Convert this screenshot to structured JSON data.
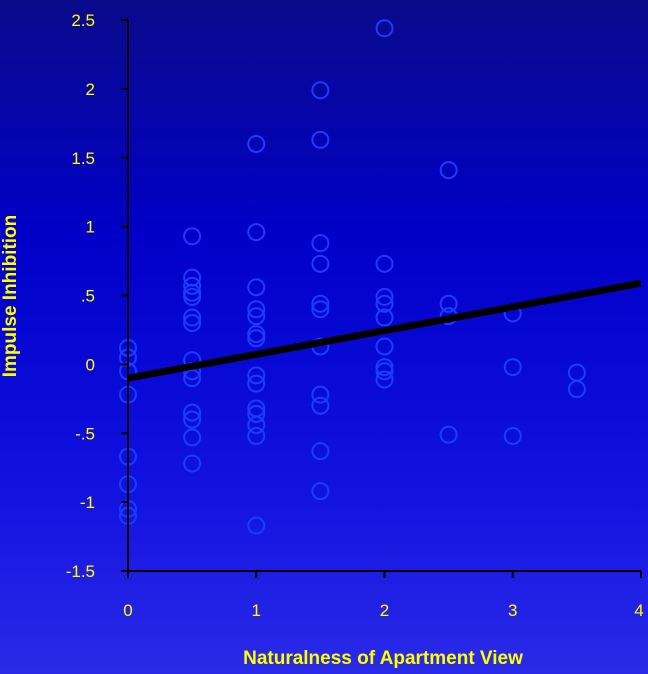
{
  "chart_data": {
    "type": "scatter",
    "xlabel": "Naturalness of Apartment View",
    "ylabel": "Impulse Inhibition",
    "xlim": [
      0,
      4
    ],
    "ylim": [
      -1.5,
      2.5
    ],
    "x_ticks": [
      {
        "value": 0,
        "label": "0"
      },
      {
        "value": 1,
        "label": "1"
      },
      {
        "value": 2,
        "label": "2"
      },
      {
        "value": 3,
        "label": "3"
      },
      {
        "value": 4,
        "label": "4"
      }
    ],
    "y_ticks": [
      {
        "value": 2.5,
        "label": "2.5"
      },
      {
        "value": 2,
        "label": "2"
      },
      {
        "value": 1.5,
        "label": "1.5"
      },
      {
        "value": 1,
        "label": "1"
      },
      {
        "value": 0.5,
        "label": ".5"
      },
      {
        "value": 0,
        "label": "0"
      },
      {
        "value": -0.5,
        "label": "-.5"
      },
      {
        "value": -1,
        "label": "-1"
      },
      {
        "value": -1.5,
        "label": "-1.5"
      }
    ],
    "points": [
      {
        "x": 0,
        "y": 0.12
      },
      {
        "x": 0,
        "y": 0.05
      },
      {
        "x": 0,
        "y": -0.05
      },
      {
        "x": 0,
        "y": -0.22
      },
      {
        "x": 0,
        "y": -0.67
      },
      {
        "x": 0,
        "y": -0.87
      },
      {
        "x": 0,
        "y": -1.05
      },
      {
        "x": 0,
        "y": -1.1
      },
      {
        "x": 0.5,
        "y": 0.93
      },
      {
        "x": 0.5,
        "y": 0.63
      },
      {
        "x": 0.5,
        "y": 0.57
      },
      {
        "x": 0.5,
        "y": 0.52
      },
      {
        "x": 0.5,
        "y": 0.49
      },
      {
        "x": 0.5,
        "y": 0.34
      },
      {
        "x": 0.5,
        "y": 0.3
      },
      {
        "x": 0.5,
        "y": 0.03
      },
      {
        "x": 0.5,
        "y": -0.05
      },
      {
        "x": 0.5,
        "y": -0.1
      },
      {
        "x": 0.5,
        "y": -0.35
      },
      {
        "x": 0.5,
        "y": -0.4
      },
      {
        "x": 0.5,
        "y": -0.53
      },
      {
        "x": 0.5,
        "y": -0.72
      },
      {
        "x": 1,
        "y": 1.6
      },
      {
        "x": 1,
        "y": 0.96
      },
      {
        "x": 1,
        "y": 0.56
      },
      {
        "x": 1,
        "y": 0.4
      },
      {
        "x": 1,
        "y": 0.35
      },
      {
        "x": 1,
        "y": 0.22
      },
      {
        "x": 1,
        "y": 0.19
      },
      {
        "x": 1,
        "y": -0.08
      },
      {
        "x": 1,
        "y": -0.14
      },
      {
        "x": 1,
        "y": -0.32
      },
      {
        "x": 1,
        "y": -0.36
      },
      {
        "x": 1,
        "y": -0.44
      },
      {
        "x": 1,
        "y": -0.52
      },
      {
        "x": 1,
        "y": -1.17
      },
      {
        "x": 1.5,
        "y": 1.99
      },
      {
        "x": 1.5,
        "y": 1.63
      },
      {
        "x": 1.5,
        "y": 0.88
      },
      {
        "x": 1.5,
        "y": 0.73
      },
      {
        "x": 1.5,
        "y": 0.44
      },
      {
        "x": 1.5,
        "y": 0.4
      },
      {
        "x": 1.5,
        "y": 0.13
      },
      {
        "x": 1.5,
        "y": -0.22
      },
      {
        "x": 1.5,
        "y": -0.3
      },
      {
        "x": 1.5,
        "y": -0.63
      },
      {
        "x": 1.5,
        "y": -0.92
      },
      {
        "x": 2,
        "y": 2.44
      },
      {
        "x": 2,
        "y": 0.73
      },
      {
        "x": 2,
        "y": 0.49
      },
      {
        "x": 2,
        "y": 0.44
      },
      {
        "x": 2,
        "y": 0.34
      },
      {
        "x": 2,
        "y": 0.13
      },
      {
        "x": 2,
        "y": -0.02
      },
      {
        "x": 2,
        "y": -0.05
      },
      {
        "x": 2,
        "y": -0.11
      },
      {
        "x": 2.5,
        "y": 1.41
      },
      {
        "x": 2.5,
        "y": 0.44
      },
      {
        "x": 2.5,
        "y": 0.35
      },
      {
        "x": 2.5,
        "y": -0.51
      },
      {
        "x": 3,
        "y": 0.37
      },
      {
        "x": 3,
        "y": -0.02
      },
      {
        "x": 3,
        "y": -0.52
      },
      {
        "x": 3.5,
        "y": -0.06
      },
      {
        "x": 3.5,
        "y": -0.18
      }
    ],
    "trendline": {
      "x": [
        0,
        4
      ],
      "y": [
        -0.1,
        0.59
      ]
    },
    "grid": false,
    "legend": "none"
  }
}
